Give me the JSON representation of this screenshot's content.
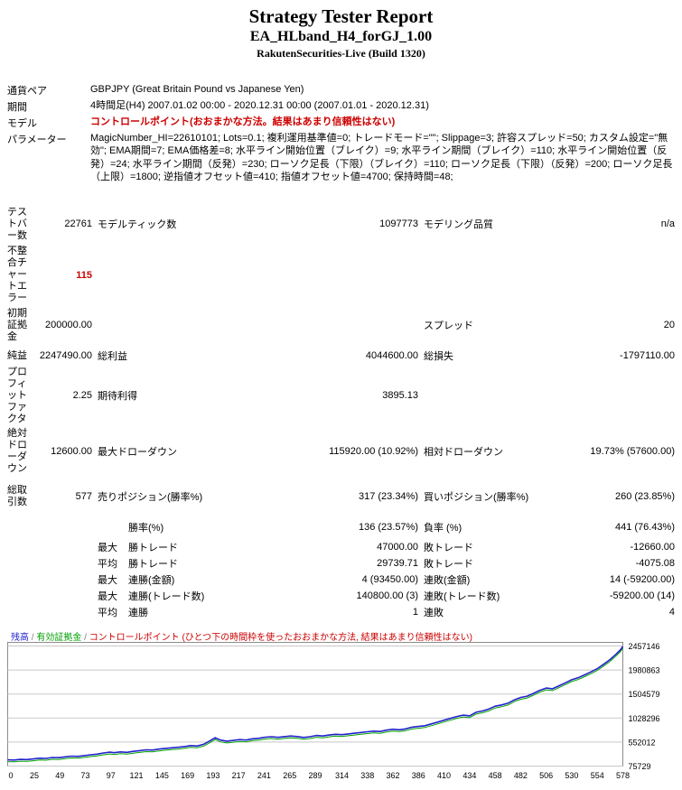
{
  "header": {
    "title": "Strategy Tester Report",
    "subtitle": "EA_HLband_H4_forGJ_1.00",
    "build": "RakutenSecurities-Live (Build 1320)"
  },
  "info": {
    "symbol_label": "通貨ペア",
    "symbol_value": "GBPJPY (Great Britain Pound vs Japanese Yen)",
    "period_label": "期間",
    "period_value": "4時間足(H4) 2007.01.02 00:00 - 2020.12.31 00:00 (2007.01.01 - 2020.12.31)",
    "model_label": "モデル",
    "model_value": "コントロールポイント(おおまかな方法。結果はあまり信頼性はない)",
    "params_label": "パラメーター",
    "params_value": "MagicNumber_HI=22610101; Lots=0.1; 複利運用基準値=0; トレードモード=\"\"; Slippage=3; 許容スプレッド=50; カスタム設定=\"無効\"; EMA期間=7; EMA価格差=8; 水平ライン開始位置（ブレイク）=9; 水平ライン期間（ブレイク）=110; 水平ライン開始位置（反発）=24; 水平ライン期間（反発）=230; ローソク足長（下限）（ブレイク）=110; ローソク足長（下限）（反発）=200; ローソク足長（上限）=1800; 逆指値オフセット値=410; 指値オフセット値=4700; 保持時間=48;"
  },
  "stats": {
    "rows": [
      {
        "h": "テストバー数",
        "v1": "22761",
        "l2": "モデルティック数",
        "v2": "1097773",
        "l3": "モデリング品質",
        "v3": "n/a"
      },
      {
        "h": "不整合チャートエラー",
        "v1": "115",
        "l2": "",
        "v2": "",
        "l3": "",
        "v3": ""
      },
      {
        "h": "初期証拠金",
        "v1": "200000.00",
        "l2": "",
        "v2": "",
        "l3": "スプレッド",
        "v3": "20"
      },
      {
        "h": "純益",
        "v1": "2247490.00",
        "l2": "総利益",
        "v2": "4044600.00",
        "l3": "総損失",
        "v3": "-1797110.00"
      },
      {
        "h": "プロフィットファクタ",
        "v1": "2.25",
        "l2": "期待利得",
        "v2": "3895.13",
        "l3": "",
        "v3": ""
      },
      {
        "h": "絶対ドローダウン",
        "v1": "12600.00",
        "l2": "最大ドローダウン",
        "v2": "115920.00 (10.92%)",
        "l3": "相対ドローダウン",
        "v3": "19.73% (57600.00)"
      },
      {
        "h": "総取引数",
        "v1": "577",
        "l2": "売りポジション(勝率%)",
        "v2": "317 (23.34%)",
        "l3": "買いポジション(勝率%)",
        "v3": "260 (23.85%)"
      },
      {
        "h": "",
        "v1": "",
        "pre": "",
        "l2": "勝率(%)",
        "v2": "136 (23.57%)",
        "l3": "負率 (%)",
        "v3": "441 (76.43%)"
      },
      {
        "h": "",
        "v1": "",
        "pre": "最大",
        "l2": "勝トレード",
        "v2": "47000.00",
        "l3": "敗トレード",
        "v3": "-12660.00"
      },
      {
        "h": "",
        "v1": "",
        "pre": "平均",
        "l2": "勝トレード",
        "v2": "29739.71",
        "l3": "敗トレード",
        "v3": "-4075.08"
      },
      {
        "h": "",
        "v1": "",
        "pre": "最大",
        "l2": "連勝(金額)",
        "v2": "4 (93450.00)",
        "l3": "連敗(金額)",
        "v3": "14 (-59200.00)"
      },
      {
        "h": "",
        "v1": "",
        "pre": "最大",
        "l2": "連勝(トレード数)",
        "v2": "140800.00 (3)",
        "l3": "連敗(トレード数)",
        "v3": "-59200.00 (14)"
      },
      {
        "h": "",
        "v1": "",
        "pre": "平均",
        "l2": "連勝",
        "v2": "1",
        "l3": "連敗",
        "v3": "4"
      }
    ]
  },
  "chart_data": {
    "type": "line",
    "title": "",
    "legend_separator": " / ",
    "legend": [
      {
        "label": "残高",
        "color": "#2222cc"
      },
      {
        "label": "有効証拠金",
        "color": "#00a000"
      },
      {
        "label": "コントロールポイント (ひとつ下の時間枠を使ったおおまかな方法, 結果はあまり信頼性はない)",
        "color": "#cc0000"
      }
    ],
    "xlabel": "",
    "ylabel": "",
    "x_range": [
      0,
      578
    ],
    "y_range": [
      75729,
      2457146
    ],
    "grid": "horizontal",
    "legend_position": "top-left",
    "y_ticks": [
      2457146,
      1980863,
      1504579,
      1028296,
      552012,
      75729
    ],
    "x_ticks": [
      0,
      25,
      49,
      73,
      97,
      121,
      145,
      169,
      193,
      217,
      241,
      265,
      289,
      314,
      338,
      362,
      386,
      410,
      434,
      458,
      482,
      506,
      530,
      554,
      578
    ],
    "series": [
      {
        "name": "残高",
        "color": "#2222cc",
        "points": [
          [
            0,
            200000
          ],
          [
            6,
            196000
          ],
          [
            12,
            208000
          ],
          [
            18,
            204000
          ],
          [
            24,
            218000
          ],
          [
            30,
            232000
          ],
          [
            36,
            228000
          ],
          [
            42,
            246000
          ],
          [
            48,
            242000
          ],
          [
            54,
            258000
          ],
          [
            60,
            272000
          ],
          [
            66,
            268000
          ],
          [
            72,
            284000
          ],
          [
            78,
            300000
          ],
          [
            84,
            312000
          ],
          [
            90,
            336000
          ],
          [
            96,
            352000
          ],
          [
            100,
            340000
          ],
          [
            106,
            356000
          ],
          [
            112,
            348000
          ],
          [
            118,
            368000
          ],
          [
            124,
            382000
          ],
          [
            130,
            398000
          ],
          [
            136,
            392000
          ],
          [
            142,
            412000
          ],
          [
            148,
            426000
          ],
          [
            154,
            438000
          ],
          [
            160,
            448000
          ],
          [
            166,
            462000
          ],
          [
            172,
            482000
          ],
          [
            178,
            474000
          ],
          [
            184,
            508000
          ],
          [
            190,
            575000
          ],
          [
            195,
            638000
          ],
          [
            200,
            592000
          ],
          [
            206,
            570000
          ],
          [
            212,
            584000
          ],
          [
            218,
            600000
          ],
          [
            224,
            592000
          ],
          [
            230,
            616000
          ],
          [
            236,
            628000
          ],
          [
            242,
            648000
          ],
          [
            248,
            658000
          ],
          [
            254,
            646000
          ],
          [
            260,
            660000
          ],
          [
            266,
            672000
          ],
          [
            272,
            662000
          ],
          [
            278,
            644000
          ],
          [
            284,
            658000
          ],
          [
            290,
            682000
          ],
          [
            296,
            672000
          ],
          [
            302,
            692000
          ],
          [
            308,
            706000
          ],
          [
            314,
            698000
          ],
          [
            320,
            714000
          ],
          [
            326,
            728000
          ],
          [
            332,
            742000
          ],
          [
            338,
            756000
          ],
          [
            344,
            768000
          ],
          [
            350,
            762000
          ],
          [
            356,
            788000
          ],
          [
            362,
            806000
          ],
          [
            368,
            796000
          ],
          [
            374,
            814000
          ],
          [
            380,
            848000
          ],
          [
            386,
            862000
          ],
          [
            392,
            876000
          ],
          [
            398,
            912000
          ],
          [
            404,
            948000
          ],
          [
            410,
            986000
          ],
          [
            416,
            1022000
          ],
          [
            422,
            1058000
          ],
          [
            428,
            1086000
          ],
          [
            434,
            1072000
          ],
          [
            440,
            1142000
          ],
          [
            446,
            1168000
          ],
          [
            452,
            1205000
          ],
          [
            458,
            1262000
          ],
          [
            464,
            1288000
          ],
          [
            470,
            1322000
          ],
          [
            476,
            1388000
          ],
          [
            482,
            1436000
          ],
          [
            488,
            1462000
          ],
          [
            494,
            1518000
          ],
          [
            500,
            1578000
          ],
          [
            506,
            1622000
          ],
          [
            512,
            1608000
          ],
          [
            518,
            1668000
          ],
          [
            524,
            1726000
          ],
          [
            530,
            1788000
          ],
          [
            536,
            1826000
          ],
          [
            542,
            1884000
          ],
          [
            548,
            1944000
          ],
          [
            554,
            2008000
          ],
          [
            560,
            2096000
          ],
          [
            566,
            2188000
          ],
          [
            572,
            2302000
          ],
          [
            576,
            2388000
          ],
          [
            578,
            2447490
          ]
        ]
      },
      {
        "name": "有効証拠金",
        "color": "#00a000"
      }
    ]
  }
}
